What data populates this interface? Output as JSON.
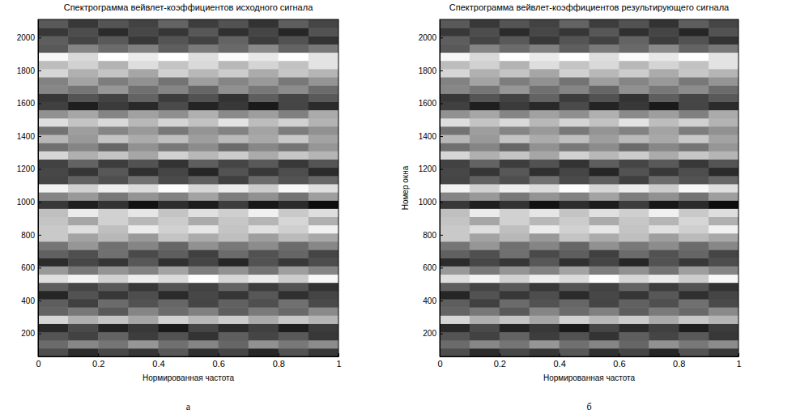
{
  "chart_data": [
    {
      "type": "heatmap",
      "title": "Спектрограмма вейвлет-коэффициентов исходного сигнала",
      "xlabel": "Нормированная частота",
      "panel_label": "а",
      "xlim": [
        0,
        1
      ],
      "ylim": [
        60,
        2110
      ],
      "xticks": [
        0,
        0.2,
        0.4,
        0.6,
        0.8,
        1
      ],
      "yticks": [
        200,
        400,
        600,
        800,
        1000,
        1200,
        1400,
        1600,
        1800,
        2000
      ],
      "x_bins": [
        0,
        0.1,
        0.2,
        0.3,
        0.4,
        0.5,
        0.6,
        0.7,
        0.8,
        0.9,
        1
      ],
      "y_bins": [
        60,
        110,
        160,
        210,
        260,
        310,
        360,
        410,
        460,
        510,
        560,
        610,
        660,
        710,
        760,
        810,
        860,
        910,
        960,
        1010,
        1060,
        1110,
        1160,
        1210,
        1260,
        1310,
        1360,
        1410,
        1460,
        1510,
        1560,
        1610,
        1660,
        1710,
        1760,
        1810,
        1860,
        1910,
        1960,
        2010,
        2060,
        2110
      ],
      "clim": [
        0,
        100
      ],
      "cells": [
        [
          30,
          17,
          28,
          21,
          34,
          19,
          27,
          15,
          32,
          22
        ],
        [
          42,
          53,
          46,
          59,
          44,
          52,
          40,
          57,
          47,
          55
        ],
        [
          33,
          26,
          39,
          24,
          32,
          20,
          37,
          27,
          35,
          22
        ],
        [
          16,
          29,
          14,
          22,
          10,
          27,
          17,
          25,
          12,
          23
        ],
        [
          84,
          69,
          77,
          65,
          82,
          72,
          80,
          67,
          78,
          71
        ],
        [
          39,
          47,
          35,
          52,
          42,
          50,
          37,
          48,
          41,
          54
        ],
        [
          37,
          25,
          42,
          32,
          40,
          27,
          38,
          31,
          44,
          29
        ],
        [
          15,
          32,
          22,
          30,
          17,
          28,
          21,
          34,
          19,
          27
        ],
        [
          37,
          27,
          35,
          22,
          33,
          26,
          39,
          24,
          32,
          20
        ],
        [
          87,
          95,
          82,
          93,
          86,
          99,
          84,
          92,
          80,
          97
        ],
        [
          60,
          47,
          58,
          51,
          64,
          49,
          57,
          45,
          62,
          52
        ],
        [
          17,
          28,
          21,
          34,
          19,
          27,
          15,
          32,
          22,
          30
        ],
        [
          38,
          31,
          44,
          29,
          37,
          25,
          42,
          32,
          40,
          27
        ],
        [
          46,
          59,
          44,
          52,
          40,
          57,
          47,
          55,
          42,
          53
        ],
        [
          79,
          64,
          72,
          60,
          77,
          67,
          75,
          62,
          73,
          66
        ],
        [
          79,
          87,
          75,
          92,
          82,
          90,
          77,
          88,
          81,
          94
        ],
        [
          77,
          65,
          82,
          72,
          80,
          67,
          78,
          71,
          84,
          69
        ],
        [
          75,
          92,
          82,
          90,
          77,
          88,
          81,
          94,
          79,
          87
        ],
        [
          22,
          12,
          20,
          7,
          18,
          11,
          24,
          9,
          17,
          5
        ],
        [
          52,
          60,
          47,
          58,
          51,
          64,
          49,
          57,
          45,
          62
        ],
        [
          95,
          82,
          93,
          86,
          99,
          84,
          92,
          80,
          97,
          87
        ],
        [
          27,
          38,
          31,
          44,
          29,
          37,
          25,
          42,
          32,
          40
        ],
        [
          28,
          21,
          34,
          19,
          27,
          15,
          32,
          22,
          30,
          17
        ],
        [
          26,
          39,
          24,
          32,
          20,
          37,
          27,
          35,
          22,
          33
        ],
        [
          84,
          69,
          77,
          65,
          82,
          72,
          80,
          67,
          78,
          71
        ],
        [
          44,
          52,
          40,
          57,
          47,
          55,
          42,
          53,
          46,
          59
        ],
        [
          72,
          60,
          77,
          67,
          75,
          62,
          73,
          66,
          79,
          64
        ],
        [
          45,
          62,
          52,
          60,
          47,
          58,
          51,
          64,
          49,
          57
        ],
        [
          87,
          77,
          85,
          72,
          83,
          76,
          89,
          74,
          82,
          70
        ],
        [
          57,
          65,
          52,
          63,
          56,
          69,
          54,
          62,
          50,
          67
        ],
        [
          25,
          12,
          23,
          16,
          29,
          14,
          22,
          10,
          27,
          17
        ],
        [
          22,
          33,
          26,
          39,
          24,
          32,
          20,
          37,
          27,
          35
        ],
        [
          53,
          46,
          59,
          44,
          52,
          40,
          57,
          47,
          55,
          42
        ],
        [
          51,
          64,
          49,
          57,
          45,
          62,
          52,
          60,
          47,
          58
        ],
        [
          84,
          69,
          77,
          65,
          82,
          72,
          80,
          67,
          78,
          71
        ],
        [
          74,
          82,
          70,
          87,
          77,
          85,
          72,
          83,
          76,
          89
        ],
        [
          97,
          85,
          100,
          92,
          100,
          87,
          98,
          91,
          100,
          89
        ],
        [
          35,
          52,
          42,
          50,
          37,
          48,
          41,
          54,
          39,
          47
        ],
        [
          37,
          27,
          35,
          22,
          33,
          26,
          39,
          24,
          32,
          20
        ],
        [
          22,
          30,
          17,
          28,
          21,
          34,
          19,
          27,
          15,
          32
        ],
        [
          35,
          22,
          33,
          26,
          39,
          24,
          32,
          20,
          37,
          27
        ]
      ]
    },
    {
      "type": "heatmap",
      "title": "Спектрограмма вейвлет-коэффициентов результирующего сигнала",
      "xlabel": "Нормированная частота",
      "ylabel": "Номер окна",
      "panel_label": "б",
      "xlim": [
        0,
        1
      ],
      "ylim": [
        60,
        2110
      ],
      "xticks": [
        0,
        0.2,
        0.4,
        0.6,
        0.8,
        1
      ],
      "yticks": [
        200,
        400,
        600,
        800,
        1000,
        1200,
        1400,
        1600,
        1800,
        2000
      ],
      "x_bins": [
        0,
        0.1,
        0.2,
        0.3,
        0.4,
        0.5,
        0.6,
        0.7,
        0.8,
        0.9,
        1
      ],
      "y_bins": [
        60,
        110,
        160,
        210,
        260,
        310,
        360,
        410,
        460,
        510,
        560,
        610,
        660,
        710,
        760,
        810,
        860,
        910,
        960,
        1010,
        1060,
        1110,
        1160,
        1210,
        1260,
        1310,
        1360,
        1410,
        1460,
        1510,
        1560,
        1610,
        1660,
        1710,
        1760,
        1810,
        1860,
        1910,
        1960,
        2010,
        2060,
        2110
      ],
      "clim": [
        0,
        100
      ],
      "cells": [
        [
          30,
          17,
          28,
          21,
          34,
          19,
          27,
          15,
          32,
          22
        ],
        [
          42,
          53,
          46,
          59,
          44,
          52,
          40,
          57,
          47,
          55
        ],
        [
          33,
          26,
          39,
          24,
          32,
          20,
          37,
          27,
          35,
          22
        ],
        [
          16,
          29,
          14,
          22,
          10,
          27,
          17,
          25,
          12,
          23
        ],
        [
          84,
          69,
          77,
          65,
          82,
          72,
          80,
          67,
          78,
          71
        ],
        [
          39,
          47,
          35,
          52,
          42,
          50,
          37,
          48,
          41,
          54
        ],
        [
          37,
          25,
          42,
          32,
          40,
          27,
          38,
          31,
          44,
          29
        ],
        [
          15,
          32,
          22,
          30,
          17,
          28,
          21,
          34,
          19,
          27
        ],
        [
          37,
          27,
          35,
          22,
          33,
          26,
          39,
          24,
          32,
          20
        ],
        [
          87,
          95,
          82,
          93,
          86,
          99,
          84,
          92,
          80,
          97
        ],
        [
          60,
          47,
          58,
          51,
          64,
          49,
          57,
          45,
          62,
          52
        ],
        [
          17,
          28,
          21,
          34,
          19,
          27,
          15,
          32,
          22,
          30
        ],
        [
          38,
          31,
          44,
          29,
          37,
          25,
          42,
          32,
          40,
          27
        ],
        [
          46,
          59,
          44,
          52,
          40,
          57,
          47,
          55,
          42,
          53
        ],
        [
          79,
          64,
          72,
          60,
          77,
          67,
          75,
          62,
          73,
          66
        ],
        [
          79,
          87,
          75,
          92,
          82,
          90,
          77,
          88,
          81,
          94
        ],
        [
          77,
          65,
          82,
          72,
          80,
          67,
          78,
          71,
          84,
          69
        ],
        [
          75,
          92,
          82,
          90,
          77,
          88,
          81,
          94,
          79,
          87
        ],
        [
          22,
          12,
          20,
          7,
          18,
          11,
          24,
          9,
          17,
          5
        ],
        [
          52,
          60,
          47,
          58,
          51,
          64,
          49,
          57,
          45,
          62
        ],
        [
          95,
          82,
          93,
          86,
          99,
          84,
          92,
          80,
          97,
          87
        ],
        [
          27,
          38,
          31,
          44,
          29,
          37,
          25,
          42,
          32,
          40
        ],
        [
          28,
          21,
          34,
          19,
          27,
          15,
          32,
          22,
          30,
          17
        ],
        [
          26,
          39,
          24,
          32,
          20,
          37,
          27,
          35,
          22,
          33
        ],
        [
          84,
          69,
          77,
          65,
          82,
          72,
          80,
          67,
          78,
          71
        ],
        [
          44,
          52,
          40,
          57,
          47,
          55,
          42,
          53,
          46,
          59
        ],
        [
          72,
          60,
          77,
          67,
          75,
          62,
          73,
          66,
          79,
          64
        ],
        [
          45,
          62,
          52,
          60,
          47,
          58,
          51,
          64,
          49,
          57
        ],
        [
          87,
          77,
          85,
          72,
          83,
          76,
          89,
          74,
          82,
          70
        ],
        [
          57,
          65,
          52,
          63,
          56,
          69,
          54,
          62,
          50,
          67
        ],
        [
          25,
          12,
          23,
          16,
          29,
          14,
          22,
          10,
          27,
          17
        ],
        [
          22,
          33,
          26,
          39,
          24,
          32,
          20,
          37,
          27,
          35
        ],
        [
          53,
          46,
          59,
          44,
          52,
          40,
          57,
          47,
          55,
          42
        ],
        [
          51,
          64,
          49,
          57,
          45,
          62,
          52,
          60,
          47,
          58
        ],
        [
          84,
          69,
          77,
          65,
          82,
          72,
          80,
          67,
          78,
          71
        ],
        [
          74,
          82,
          70,
          87,
          77,
          85,
          72,
          83,
          76,
          89
        ],
        [
          97,
          85,
          100,
          92,
          100,
          87,
          98,
          91,
          100,
          89
        ],
        [
          35,
          52,
          42,
          50,
          37,
          48,
          41,
          54,
          39,
          47
        ],
        [
          37,
          27,
          35,
          22,
          33,
          26,
          39,
          24,
          32,
          20
        ],
        [
          22,
          30,
          17,
          28,
          21,
          34,
          19,
          27,
          15,
          32
        ],
        [
          35,
          22,
          33,
          26,
          39,
          24,
          32,
          20,
          37,
          27
        ]
      ]
    }
  ]
}
